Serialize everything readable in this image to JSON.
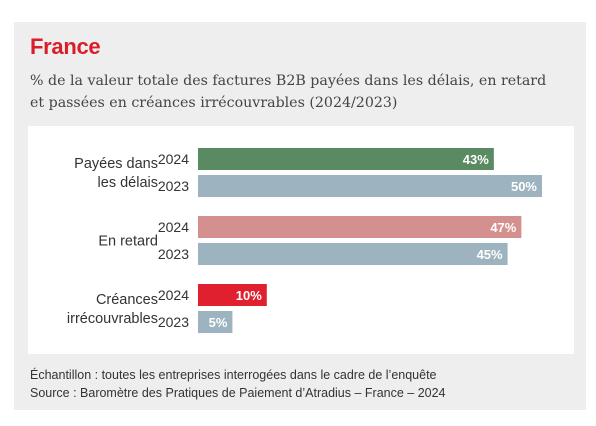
{
  "header": {
    "title": "France",
    "subtitle": "% de la valeur totale des factures B2B payées dans les délais, en retard et passées en créances irrécouvrables (2024/2023)"
  },
  "footer": {
    "sample": "Échantillon : toutes les entreprises interrogées dans le cadre de l’enquête",
    "source": "Source : Baromètre des Pratiques de Paiement d’Atradius – France – 2024"
  },
  "colors": {
    "2023": "#9db4c0",
    "payees_2024": "#5a8a62",
    "retard_2024": "#d4908f",
    "creances_2024": "#e0202f",
    "label_text": "#ffffff"
  },
  "chart_data": {
    "type": "bar",
    "orientation": "horizontal",
    "value_format": "percent",
    "groups": [
      {
        "label": [
          "Payées dans",
          "les délais"
        ],
        "bars": [
          {
            "year": "2024",
            "value": 43,
            "label": "43%",
            "color_key": "payees_2024"
          },
          {
            "year": "2023",
            "value": 50,
            "label": "50%",
            "color_key": "2023"
          }
        ]
      },
      {
        "label": [
          "En retard"
        ],
        "bars": [
          {
            "year": "2024",
            "value": 47,
            "label": "47%",
            "color_key": "retard_2024"
          },
          {
            "year": "2023",
            "value": 45,
            "label": "45%",
            "color_key": "2023"
          }
        ]
      },
      {
        "label": [
          "Créances",
          "irrécouvrables"
        ],
        "bars": [
          {
            "year": "2024",
            "value": 10,
            "label": "10%",
            "color_key": "creances_2024"
          },
          {
            "year": "2023",
            "value": 5,
            "label": "5%",
            "color_key": "2023"
          }
        ]
      }
    ]
  }
}
